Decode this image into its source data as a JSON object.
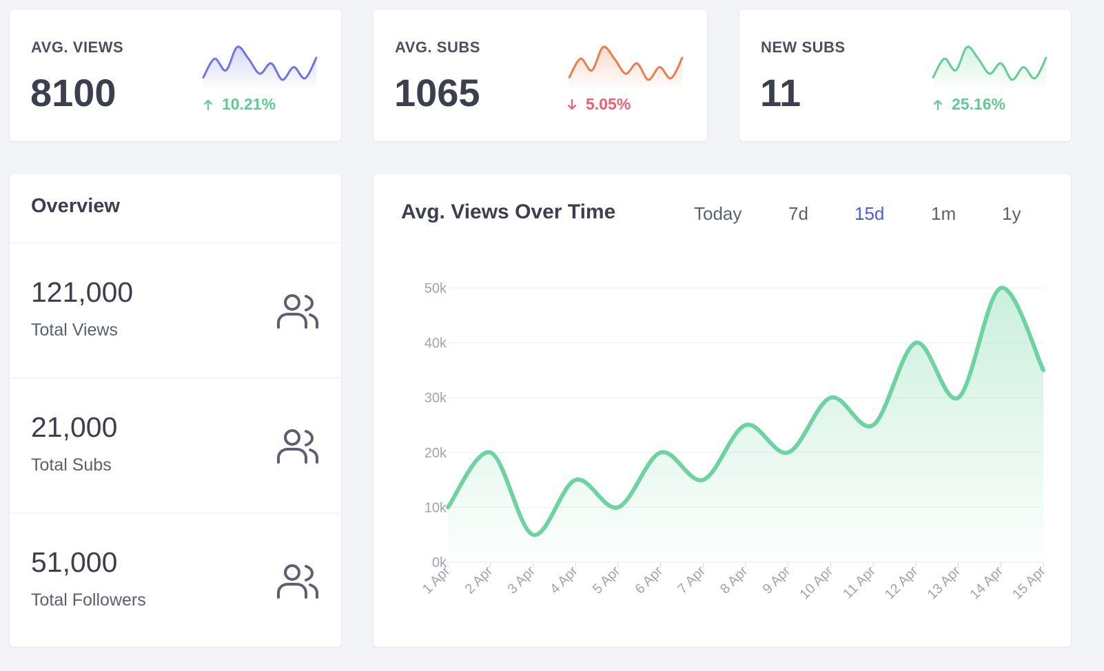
{
  "stats": [
    {
      "label": "AVG. VIEWS",
      "value": "8100",
      "delta": "10.21%",
      "direction": "up",
      "color": "#6c74e8",
      "delta_color": "#5ecb92",
      "spark": [
        20,
        60,
        35,
        85,
        60,
        28,
        50,
        15,
        42,
        18,
        62
      ]
    },
    {
      "label": "AVG. SUBS",
      "value": "1065",
      "delta": "5.05%",
      "direction": "down",
      "color": "#ec7d4a",
      "delta_color": "#ef5d70",
      "spark": [
        20,
        60,
        35,
        85,
        60,
        28,
        50,
        15,
        42,
        18,
        62
      ]
    },
    {
      "label": "NEW SUBS",
      "value": "11",
      "delta": "25.16%",
      "direction": "up",
      "color": "#61cf95",
      "delta_color": "#5ecb92",
      "spark": [
        20,
        60,
        35,
        85,
        60,
        28,
        50,
        15,
        42,
        18,
        62
      ]
    }
  ],
  "overview": {
    "title": "Overview",
    "items": [
      {
        "value": "121,000",
        "label": "Total Views",
        "icon": "users-icon"
      },
      {
        "value": "21,000",
        "label": "Total Subs",
        "icon": "users-icon"
      },
      {
        "value": "51,000",
        "label": "Total Followers",
        "icon": "users-icon"
      }
    ]
  },
  "chart": {
    "title": "Avg. Views Over Time",
    "ranges": [
      "Today",
      "7d",
      "15d",
      "1m",
      "1y"
    ],
    "active_range": "15d"
  },
  "chart_data": {
    "type": "area",
    "title": "Avg. Views Over Time",
    "categories": [
      "1 Apr",
      "2 Apr",
      "3 Apr",
      "4 Apr",
      "5 Apr",
      "6 Apr",
      "7 Apr",
      "8 Apr",
      "9 Apr",
      "10 Apr",
      "11 Apr",
      "12 Apr",
      "13 Apr",
      "14 Apr",
      "15 Apr"
    ],
    "values": [
      10000,
      20000,
      5000,
      15000,
      10000,
      20000,
      15000,
      25000,
      20000,
      30000,
      25000,
      40000,
      30000,
      50000,
      35000
    ],
    "yticks": [
      "0k",
      "10k",
      "20k",
      "30k",
      "40k",
      "50k"
    ],
    "ylim": [
      0,
      50000
    ],
    "line_color": "#6dd3a0",
    "grid": true
  }
}
